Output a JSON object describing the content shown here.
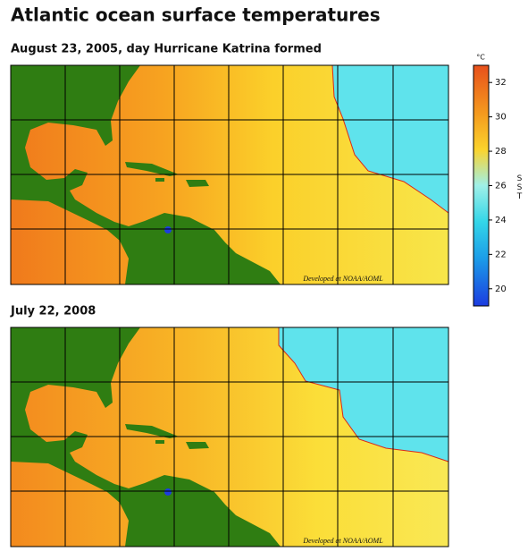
{
  "header": {
    "title": "Atlantic ocean surface temperatures"
  },
  "maps": [
    {
      "subtitle": "August 23, 2005, day Hurricane Katrina formed",
      "credit": "Developed at NOAA/AOML"
    },
    {
      "subtitle": "July 22, 2008",
      "credit": "Developed at NOAA/AOML"
    }
  ],
  "colorbar": {
    "unit": "°C",
    "label": "SST",
    "range": [
      19,
      33
    ],
    "ticks": [
      32,
      30,
      28,
      26,
      24,
      22,
      20
    ]
  }
}
